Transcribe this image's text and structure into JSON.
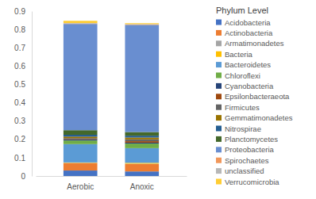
{
  "chart_data": {
    "type": "bar",
    "stacked": true,
    "legend": "right",
    "grid": false,
    "legend_title": "Phylum Level",
    "categories": [
      "Aerobic",
      "Anoxic"
    ],
    "ylim": [
      0,
      0.9
    ],
    "yticks": [
      0,
      0.1,
      0.2,
      0.3,
      0.4,
      0.5,
      0.6,
      0.7,
      0.8,
      0.9
    ],
    "series": [
      {
        "name": "Acidobacteria",
        "color": "#4472c4",
        "values": [
          0.03,
          0.025
        ]
      },
      {
        "name": "Actinobacteria",
        "color": "#ed7d31",
        "values": [
          0.04,
          0.04
        ]
      },
      {
        "name": "Armatimonadetes",
        "color": "#a5a5a5",
        "values": [
          0.002,
          0.002
        ]
      },
      {
        "name": "Bacteria",
        "color": "#ffc000",
        "values": [
          0.002,
          0.005
        ]
      },
      {
        "name": "Bacteroidetes",
        "color": "#5b9bd5",
        "values": [
          0.1,
          0.08
        ]
      },
      {
        "name": "Chloroflexi",
        "color": "#70ad47",
        "values": [
          0.02,
          0.025
        ]
      },
      {
        "name": "Cyanobacteria",
        "color": "#264478",
        "values": [
          0.005,
          0.005
        ]
      },
      {
        "name": "Epsilonbacteraeota",
        "color": "#9e480e",
        "values": [
          0.003,
          0.008
        ]
      },
      {
        "name": "Firmicutes",
        "color": "#636363",
        "values": [
          0.005,
          0.01
        ]
      },
      {
        "name": "Gemmatimonadetes",
        "color": "#997300",
        "values": [
          0.008,
          0.01
        ]
      },
      {
        "name": "Nitrospirae",
        "color": "#255e91",
        "values": [
          0.01,
          0.01
        ]
      },
      {
        "name": "Planctomycetes",
        "color": "#43682b",
        "values": [
          0.025,
          0.02
        ]
      },
      {
        "name": "Proteobacteria",
        "color": "#698ed0",
        "values": [
          0.58,
          0.585
        ]
      },
      {
        "name": "Spirochaetes",
        "color": "#f1975a",
        "values": [
          0.002,
          0.002
        ]
      },
      {
        "name": "unclassified",
        "color": "#b7b7b7",
        "values": [
          0.003,
          0.002
        ]
      },
      {
        "name": "Verrucomicrobia",
        "color": "#ffcd33",
        "values": [
          0.012,
          0.005
        ]
      }
    ]
  }
}
